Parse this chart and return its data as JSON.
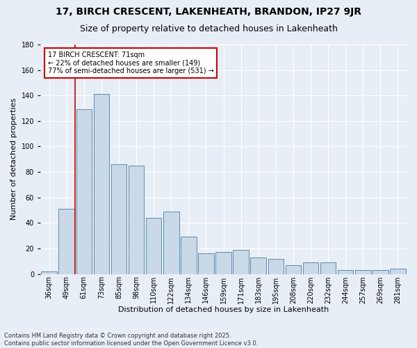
{
  "title1": "17, BIRCH CRESCENT, LAKENHEATH, BRANDON, IP27 9JR",
  "title2": "Size of property relative to detached houses in Lakenheath",
  "xlabel": "Distribution of detached houses by size in Lakenheath",
  "ylabel": "Number of detached properties",
  "categories": [
    "36sqm",
    "49sqm",
    "61sqm",
    "73sqm",
    "85sqm",
    "98sqm",
    "110sqm",
    "122sqm",
    "134sqm",
    "146sqm",
    "159sqm",
    "171sqm",
    "183sqm",
    "195sqm",
    "208sqm",
    "220sqm",
    "232sqm",
    "244sqm",
    "257sqm",
    "269sqm",
    "281sqm"
  ],
  "values": [
    2,
    51,
    129,
    141,
    86,
    85,
    44,
    49,
    29,
    16,
    17,
    19,
    13,
    12,
    7,
    9,
    9,
    3,
    3,
    3,
    4
  ],
  "bar_color": "#c9d9e8",
  "bar_edge_color": "#5a8ab0",
  "bg_color": "#e8eef5",
  "grid_color": "#ffffff",
  "annotation_text": "17 BIRCH CRESCENT: 71sqm\n← 22% of detached houses are smaller (149)\n77% of semi-detached houses are larger (531) →",
  "annotation_box_color": "#ffffff",
  "annotation_box_edge": "#cc0000",
  "footnote1": "Contains HM Land Registry data © Crown copyright and database right 2025.",
  "footnote2": "Contains public sector information licensed under the Open Government Licence v3.0.",
  "ylim": [
    0,
    180
  ],
  "red_line_x": 1.5,
  "title1_fontsize": 10,
  "title2_fontsize": 9,
  "ylabel_fontsize": 8,
  "xlabel_fontsize": 8,
  "tick_fontsize": 7,
  "annot_fontsize": 7,
  "footnote_fontsize": 6
}
